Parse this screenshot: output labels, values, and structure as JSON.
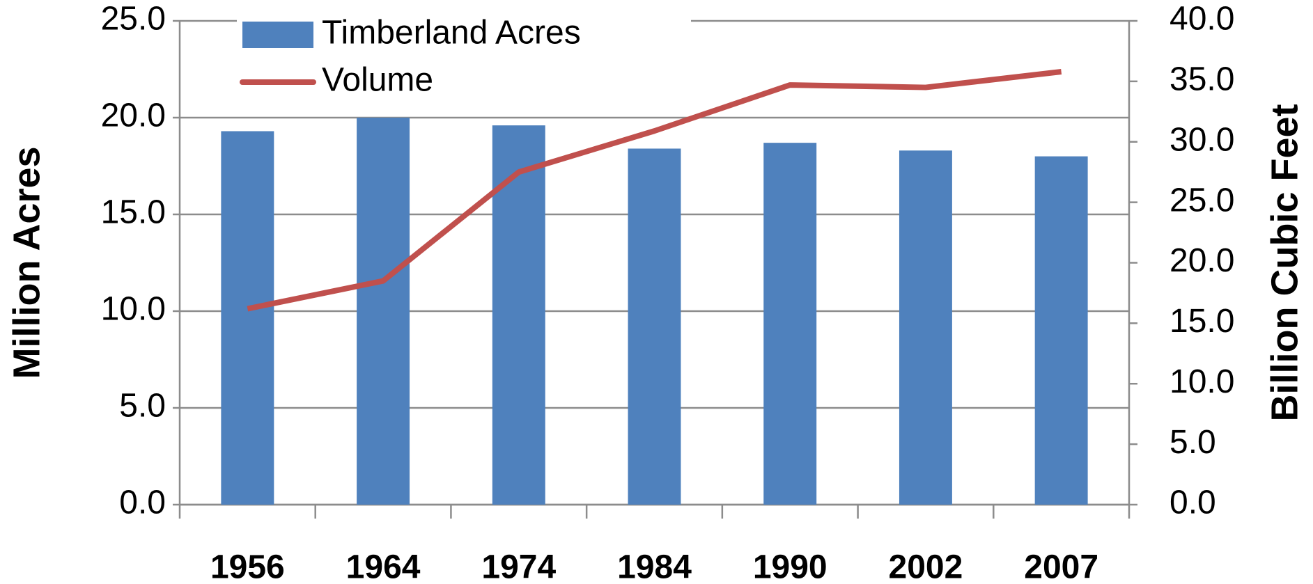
{
  "chart_data": {
    "type": "bar-line",
    "categories": [
      "1956",
      "1964",
      "1974",
      "1984",
      "1990",
      "2002",
      "2007"
    ],
    "series": [
      {
        "name": "Timberland Acres",
        "type": "bar",
        "color": "#4f81bd",
        "values": [
          19.3,
          20.0,
          19.6,
          18.4,
          18.7,
          18.3,
          18.0
        ]
      },
      {
        "name": "Volume",
        "type": "line",
        "axis": "y2",
        "color": "#c0504d",
        "values": [
          16.2,
          18.5,
          27.5,
          30.9,
          34.7,
          34.5,
          35.8
        ]
      }
    ],
    "ylabel": "Million Acres",
    "y2label": "Billion Cubic Feet",
    "ylabel_color": "#4f81bd",
    "y2label_color": "#c00000",
    "ylim": [
      0,
      25
    ],
    "yticks": [
      {
        "value": 0,
        "label": "0.0"
      },
      {
        "value": 5,
        "label": "5.0"
      },
      {
        "value": 10,
        "label": "10.0"
      },
      {
        "value": 15,
        "label": "15.0"
      },
      {
        "value": 20,
        "label": "20.0"
      },
      {
        "value": 25,
        "label": "25.0"
      }
    ],
    "y2lim": [
      0,
      40
    ],
    "y2ticks": [
      {
        "value": 0,
        "label": "0.0"
      },
      {
        "value": 5,
        "label": "5.0"
      },
      {
        "value": 10,
        "label": "10.0"
      },
      {
        "value": 15,
        "label": "15.0"
      },
      {
        "value": 20,
        "label": "20.0"
      },
      {
        "value": 25,
        "label": "25.0"
      },
      {
        "value": 30,
        "label": "30.0"
      },
      {
        "value": 35,
        "label": "35.0"
      },
      {
        "value": 40,
        "label": "40.0"
      }
    ],
    "grid": true,
    "legend": "upper left"
  }
}
